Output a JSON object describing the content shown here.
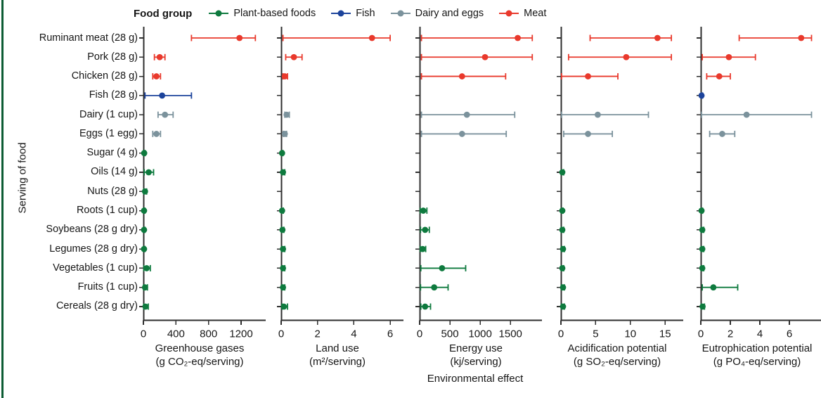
{
  "accent_color": "#0c5c34",
  "axis_color": "#2f2f2f",
  "legend": {
    "title": "Food group",
    "items": [
      {
        "key": "plant",
        "label": "Plant-based foods",
        "color": "#0e7a3e"
      },
      {
        "key": "fish",
        "label": "Fish",
        "color": "#1c439b"
      },
      {
        "key": "dairy",
        "label": "Dairy and eggs",
        "color": "#7b929c"
      },
      {
        "key": "meat",
        "label": "Meat",
        "color": "#e9392c"
      }
    ]
  },
  "axes": {
    "y_label": "Serving of food",
    "x_label": "Environmental effect"
  },
  "chart_data": {
    "type": "scatter",
    "orientation": "horizontal-dot-with-error-bars",
    "grid": false,
    "legend_position": "top",
    "categories": [
      "Ruminant meat (28 g)",
      "Pork (28 g)",
      "Chicken (28 g)",
      "Fish (28 g)",
      "Dairy (1 cup)",
      "Eggs (1 egg)",
      "Sugar (4 g)",
      "Oils (14 g)",
      "Nuts (28 g)",
      "Roots (1 cup)",
      "Soybeans (28 g dry)",
      "Legumes (28 g dry)",
      "Vegetables (1 cup)",
      "Fruits (1 cup)",
      "Cereals (28 g dry)"
    ],
    "category_groups": [
      "meat",
      "meat",
      "meat",
      "fish",
      "dairy",
      "dairy",
      "plant",
      "plant",
      "plant",
      "plant",
      "plant",
      "plant",
      "plant",
      "plant",
      "plant"
    ],
    "value_format": "[mean, ci_low, ci_high], null = not shown",
    "panels": [
      {
        "label": "Greenhouse gases",
        "unit": "(g CO₂-eq/serving)",
        "xlim": [
          0,
          1450
        ],
        "ticks": [
          0,
          400,
          800,
          1200
        ],
        "values": [
          [
            1180,
            590,
            1375
          ],
          [
            200,
            135,
            265
          ],
          [
            160,
            115,
            210
          ],
          [
            230,
            20,
            590
          ],
          [
            265,
            180,
            365
          ],
          [
            160,
            115,
            210
          ],
          [
            10,
            2,
            22
          ],
          [
            65,
            10,
            125
          ],
          [
            20,
            5,
            40
          ],
          [
            8,
            2,
            20
          ],
          [
            8,
            2,
            20
          ],
          [
            8,
            2,
            20
          ],
          [
            40,
            5,
            85
          ],
          [
            20,
            2,
            50
          ],
          [
            25,
            3,
            60
          ]
        ]
      },
      {
        "label": "Land use",
        "unit": "(m²/serving)",
        "xlim": [
          0,
          6.5
        ],
        "ticks": [
          0,
          2,
          4,
          6
        ],
        "values": [
          [
            5.0,
            0.1,
            6.0
          ],
          [
            0.7,
            0.25,
            1.15
          ],
          [
            0.2,
            0.1,
            0.35
          ],
          null,
          [
            0.3,
            0.2,
            0.45
          ],
          [
            0.2,
            0.12,
            0.3
          ],
          [
            0.05,
            0.02,
            0.1
          ],
          [
            0.1,
            0.05,
            0.2
          ],
          null,
          [
            0.05,
            0.02,
            0.12
          ],
          [
            0.07,
            0.02,
            0.15
          ],
          [
            0.1,
            0.03,
            0.2
          ],
          [
            0.1,
            0.04,
            0.2
          ],
          [
            0.1,
            0.04,
            0.2
          ],
          [
            0.15,
            0.05,
            0.35
          ]
        ]
      },
      {
        "label": "Energy use",
        "unit": "(kj/serving)",
        "xlim": [
          0,
          1950
        ],
        "ticks": [
          0,
          500,
          1000,
          1500
        ],
        "values": [
          [
            1620,
            30,
            1860
          ],
          [
            1080,
            30,
            1860
          ],
          [
            700,
            30,
            1420
          ],
          null,
          [
            780,
            30,
            1570
          ],
          [
            700,
            30,
            1430
          ],
          null,
          null,
          null,
          [
            60,
            10,
            120
          ],
          [
            90,
            15,
            160
          ],
          [
            50,
            10,
            100
          ],
          [
            370,
            20,
            760
          ],
          [
            240,
            15,
            470
          ],
          [
            90,
            20,
            180
          ]
        ]
      },
      {
        "label": "Acidification potential",
        "unit": "(g SO₂-eq/serving)",
        "xlim": [
          0,
          17
        ],
        "ticks": [
          0,
          5,
          10,
          15
        ],
        "values": [
          [
            13.9,
            4.2,
            15.9
          ],
          [
            9.4,
            1.1,
            15.9
          ],
          [
            3.9,
            0.1,
            8.2
          ],
          null,
          [
            5.3,
            0.1,
            12.6
          ],
          [
            3.9,
            0.4,
            7.4
          ],
          null,
          [
            0.2,
            0.08,
            0.4
          ],
          null,
          [
            0.2,
            0.1,
            0.3
          ],
          [
            0.2,
            0.05,
            0.4
          ],
          [
            0.3,
            0.1,
            0.5
          ],
          [
            0.2,
            0.05,
            0.4
          ],
          [
            0.3,
            0.1,
            0.5
          ],
          [
            0.3,
            0.1,
            0.5
          ]
        ]
      },
      {
        "label": "Eutrophication potential",
        "unit": "(g PO₄-eq/serving)",
        "xlim": [
          0,
          8
        ],
        "ticks": [
          0,
          2,
          4,
          6
        ],
        "values": [
          [
            6.8,
            2.6,
            7.5
          ],
          [
            1.9,
            0.1,
            3.7
          ],
          [
            1.25,
            0.4,
            2.0
          ],
          [
            0.05,
            0.02,
            0.12
          ],
          [
            3.1,
            0.05,
            7.5
          ],
          [
            1.45,
            0.6,
            2.3
          ],
          null,
          null,
          null,
          [
            0.05,
            0.02,
            0.12
          ],
          [
            0.1,
            0.03,
            0.2
          ],
          [
            0.1,
            0.03,
            0.2
          ],
          [
            0.1,
            0.03,
            0.2
          ],
          [
            0.85,
            0.1,
            2.5
          ],
          [
            0.12,
            0.03,
            0.25
          ]
        ]
      }
    ]
  }
}
